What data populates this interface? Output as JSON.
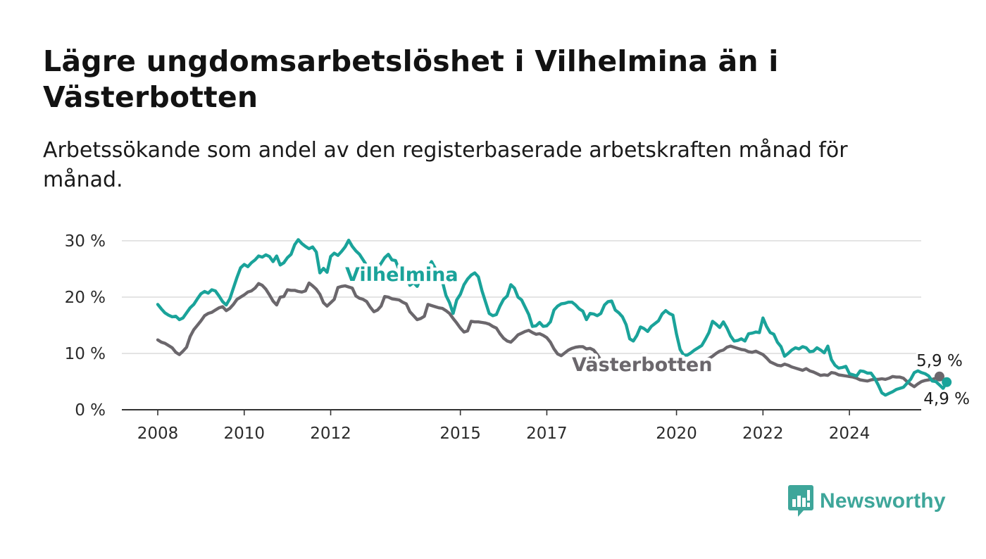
{
  "title": "Lägre ungdomsarbetslöshet i Vilhelmina än i Västerbotten",
  "subtitle": "Arbetssökande som andel av den registerbaserade arbetskraften månad för månad.",
  "logo": {
    "text": "Newsworthy",
    "color": "#3ea69a"
  },
  "colors": {
    "accent": "#1aa39a",
    "secondary": "#6b676c",
    "grid": "#dcdcdc"
  },
  "chart_data": {
    "type": "line",
    "x_start": "2008-01",
    "x_step": "month",
    "yticks": [
      "0 %",
      "10 %",
      "20 %",
      "30 %"
    ],
    "ylim": [
      0,
      30
    ],
    "xticks": [
      {
        "label": "2008",
        "date": "2008-01"
      },
      {
        "label": "2010",
        "date": "2010-01"
      },
      {
        "label": "2012",
        "date": "2012-01"
      },
      {
        "label": "2015",
        "date": "2015-01"
      },
      {
        "label": "2017",
        "date": "2017-01"
      },
      {
        "label": "2020",
        "date": "2020-01"
      },
      {
        "label": "2022",
        "date": "2022-01"
      },
      {
        "label": "2024",
        "date": "2024-01"
      }
    ],
    "grid": true,
    "series": [
      {
        "name": "Vilhelmina",
        "color": "#1aa39a",
        "end_label": "4,9 %",
        "values": [
          18.7,
          17.9,
          17.2,
          16.8,
          16.5,
          16.6,
          16.0,
          16.3,
          17.2,
          18.1,
          18.7,
          19.7,
          20.6,
          21.0,
          20.7,
          21.3,
          21.1,
          20.2,
          19.2,
          18.6,
          19.7,
          21.6,
          23.5,
          25.2,
          25.8,
          25.4,
          26.1,
          26.6,
          27.3,
          27.1,
          27.5,
          27.2,
          26.3,
          27.3,
          25.7,
          26.1,
          27.0,
          27.6,
          29.3,
          30.2,
          29.5,
          29.0,
          28.6,
          28.9,
          28.0,
          24.3,
          25.1,
          24.4,
          27.2,
          27.8,
          27.4,
          28.1,
          28.9,
          30.1,
          29.0,
          28.2,
          27.6,
          26.6,
          25.6,
          25.0,
          24.0,
          25.1,
          26.0,
          27.0,
          27.6,
          26.6,
          26.5,
          24.8,
          25.4,
          23.8,
          22.1,
          22.6,
          21.9,
          23.3,
          24.5,
          25.1,
          26.3,
          25.1,
          24.3,
          22.8,
          20.3,
          19.0,
          17.1,
          19.5,
          20.5,
          22.2,
          23.2,
          23.9,
          24.3,
          23.6,
          21.1,
          19.1,
          17.1,
          16.7,
          16.9,
          18.4,
          19.6,
          20.2,
          22.2,
          21.6,
          20.0,
          19.5,
          18.2,
          16.9,
          14.8,
          14.9,
          15.5,
          14.8,
          14.9,
          15.6,
          17.7,
          18.4,
          18.8,
          18.9,
          19.1,
          19.1,
          18.6,
          17.9,
          17.5,
          16.0,
          17.1,
          17.0,
          16.7,
          17.1,
          18.6,
          19.2,
          19.3,
          17.7,
          17.2,
          16.5,
          15.1,
          12.6,
          12.2,
          13.2,
          14.7,
          14.4,
          13.9,
          14.8,
          15.3,
          15.8,
          17.0,
          17.6,
          17.1,
          16.8,
          13.4,
          10.7,
          9.7,
          9.7,
          10.1,
          10.6,
          11.0,
          11.4,
          12.5,
          13.7,
          15.7,
          15.2,
          14.6,
          15.6,
          14.5,
          13.1,
          12.2,
          12.3,
          12.6,
          12.2,
          13.5,
          13.6,
          13.8,
          13.7,
          16.3,
          14.8,
          13.7,
          13.4,
          12.0,
          11.2,
          9.5,
          10.0,
          10.6,
          11.0,
          10.8,
          11.2,
          11.0,
          10.3,
          10.4,
          11.0,
          10.6,
          10.1,
          11.3,
          8.9,
          7.9,
          7.4,
          7.5,
          7.7,
          6.4,
          6.2,
          6.0,
          6.9,
          6.8,
          6.5,
          6.5,
          5.6,
          4.4,
          3.0,
          2.6,
          2.9,
          3.2,
          3.6,
          3.8,
          4.0,
          4.7,
          5.4,
          6.6,
          6.9,
          6.6,
          6.4,
          6.0,
          5.1,
          5.0,
          4.4,
          3.8,
          4.9
        ]
      },
      {
        "name": "Västerbotten",
        "color": "#6b676c",
        "end_label": "5,9 %",
        "values": [
          12.4,
          12.0,
          11.8,
          11.4,
          11.0,
          10.2,
          9.8,
          10.4,
          11.1,
          13.0,
          14.2,
          15.0,
          15.8,
          16.7,
          17.1,
          17.3,
          17.7,
          18.1,
          18.3,
          17.6,
          18.0,
          18.7,
          19.6,
          20.0,
          20.4,
          20.9,
          21.1,
          21.6,
          22.4,
          22.1,
          21.4,
          20.4,
          19.3,
          18.6,
          20.0,
          20.1,
          21.3,
          21.2,
          21.2,
          21.0,
          20.9,
          21.1,
          22.5,
          22.0,
          21.4,
          20.5,
          19.0,
          18.4,
          19.0,
          19.6,
          21.7,
          21.9,
          22.0,
          21.8,
          21.6,
          20.2,
          19.8,
          19.6,
          19.2,
          18.2,
          17.4,
          17.7,
          18.4,
          20.1,
          20.0,
          19.7,
          19.6,
          19.5,
          19.1,
          18.8,
          17.4,
          16.7,
          16.0,
          16.2,
          16.6,
          18.7,
          18.5,
          18.3,
          18.1,
          18.0,
          17.6,
          17.1,
          16.2,
          15.4,
          14.5,
          13.8,
          14.0,
          15.7,
          15.6,
          15.6,
          15.5,
          15.4,
          15.2,
          14.8,
          14.5,
          13.5,
          12.7,
          12.2,
          12.0,
          12.6,
          13.3,
          13.6,
          13.9,
          14.1,
          13.7,
          13.4,
          13.5,
          13.2,
          12.8,
          12.0,
          10.8,
          9.9,
          9.6,
          10.1,
          10.6,
          10.9,
          11.1,
          11.2,
          11.2,
          10.8,
          10.9,
          10.6,
          9.8,
          8.8,
          8.3,
          8.7,
          8.9,
          8.8,
          8.6,
          8.4,
          8.1,
          7.9,
          7.7,
          7.6,
          7.5,
          7.4,
          7.3,
          7.3,
          7.2,
          7.2,
          7.1,
          7.1,
          7.0,
          7.0,
          7.0,
          7.0,
          7.0,
          7.1,
          7.5,
          7.5,
          8.0,
          8.5,
          8.9,
          9.1,
          9.5,
          10.0,
          10.4,
          10.6,
          11.1,
          11.3,
          11.1,
          10.9,
          10.7,
          10.6,
          10.3,
          10.2,
          10.4,
          10.1,
          9.8,
          9.2,
          8.5,
          8.2,
          7.9,
          7.8,
          8.1,
          7.9,
          7.6,
          7.4,
          7.2,
          7.0,
          7.3,
          6.9,
          6.7,
          6.4,
          6.1,
          6.2,
          6.1,
          6.6,
          6.5,
          6.2,
          6.1,
          6.0,
          5.9,
          5.8,
          5.6,
          5.3,
          5.2,
          5.1,
          5.3,
          5.4,
          5.4,
          5.5,
          5.4,
          5.6,
          5.9,
          5.8,
          5.8,
          5.6,
          5.0,
          4.5,
          4.1,
          4.6,
          5.0,
          5.2,
          5.3,
          5.4,
          5.6,
          5.9
        ]
      }
    ]
  }
}
